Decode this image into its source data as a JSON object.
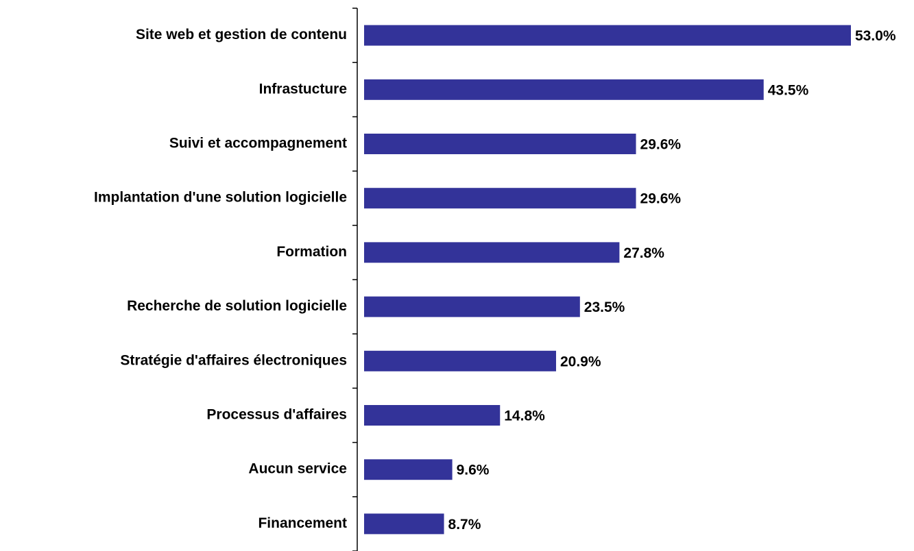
{
  "chart_data": {
    "type": "bar",
    "orientation": "horizontal",
    "color": "#333399",
    "categories": [
      "Site web et gestion de contenu",
      "Infrastucture",
      "Suivi et accompagnement",
      "Implantation d'une solution logicielle",
      "Formation",
      "Recherche de solution logicielle",
      "Stratégie d'affaires électroniques",
      "Processus d'affaires",
      "Aucun service",
      "Financement"
    ],
    "values": [
      53.0,
      43.5,
      29.6,
      29.6,
      27.8,
      23.5,
      20.9,
      14.8,
      9.6,
      8.7
    ],
    "value_labels": [
      "53.0%",
      "43.5%",
      "29.6%",
      "29.6%",
      "27.8%",
      "23.5%",
      "20.9%",
      "14.8%",
      "9.6%",
      "8.7%"
    ]
  }
}
